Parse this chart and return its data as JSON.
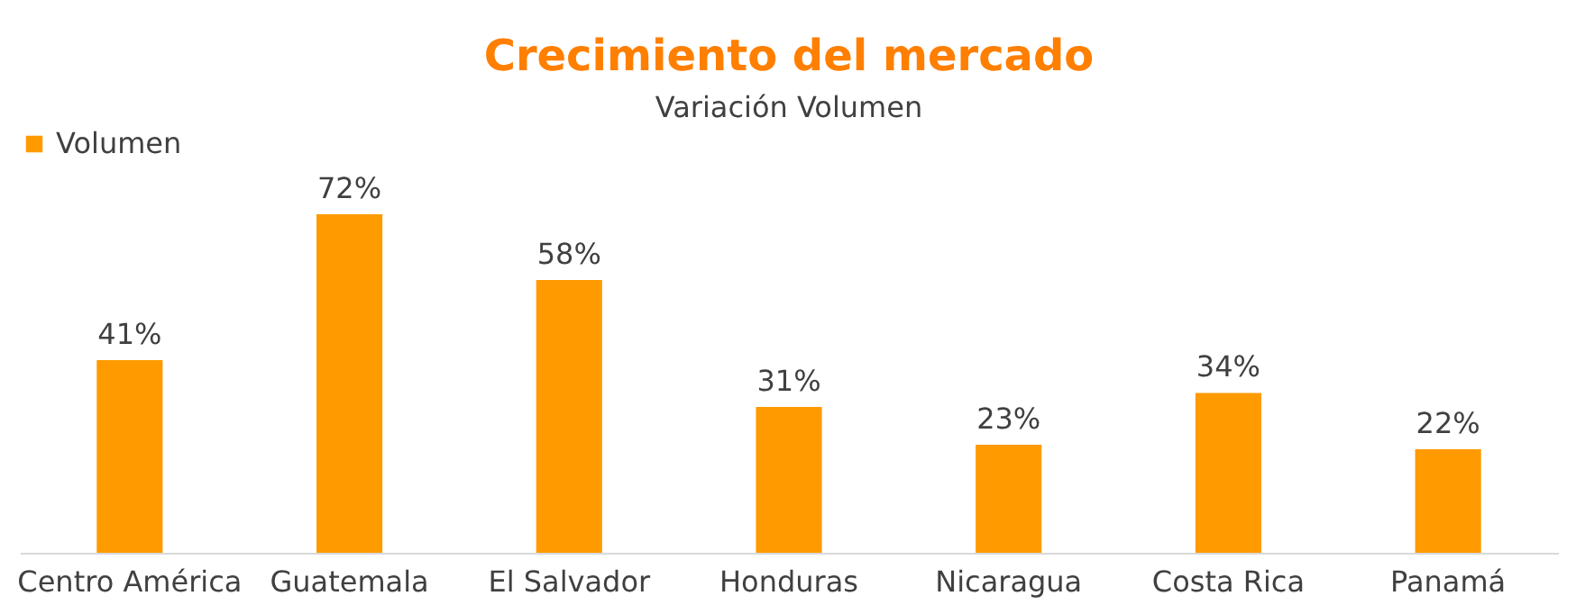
{
  "chart_data": {
    "type": "bar",
    "title": "Crecimiento del mercado",
    "subtitle": "Variación Volumen",
    "categories": [
      "Centro América",
      "Guatemala",
      "El Salvador",
      "Honduras",
      "Nicaragua",
      "Costa Rica",
      "Panamá"
    ],
    "series": [
      {
        "name": "Volumen",
        "color": "#ff9a00",
        "values": [
          41,
          72,
          58,
          31,
          23,
          34,
          22
        ],
        "value_labels": [
          "41%",
          "72%",
          "58%",
          "31%",
          "23%",
          "34%",
          "22%"
        ]
      }
    ],
    "legend": "top left",
    "grid": false
  }
}
